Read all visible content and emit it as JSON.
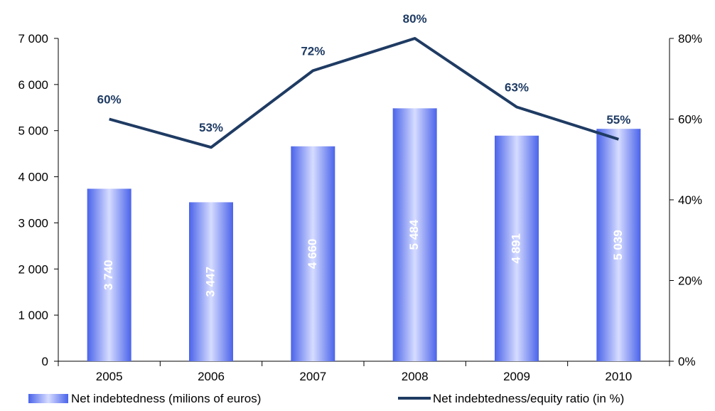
{
  "chart_data": {
    "type": "bar",
    "categories": [
      "2005",
      "2006",
      "2007",
      "2008",
      "2009",
      "2010"
    ],
    "series": [
      {
        "name": "Net indebtedness (milions of euros)",
        "type": "bar",
        "axis": "left",
        "values": [
          3740,
          3447,
          4660,
          5484,
          4891,
          5039
        ],
        "labels": [
          "3 740",
          "3 447",
          "4 660",
          "5 484",
          "4 891",
          "5 039"
        ]
      },
      {
        "name": "Net indebtedness/equity ratio (in %)",
        "type": "line",
        "axis": "right",
        "values": [
          60,
          53,
          72,
          80,
          63,
          55
        ],
        "labels": [
          "60%",
          "53%",
          "72%",
          "80%",
          "63%",
          "55%"
        ]
      }
    ],
    "left_axis": {
      "ylim": [
        0,
        7000
      ],
      "ticks": [
        0,
        1000,
        2000,
        3000,
        4000,
        5000,
        6000,
        7000
      ],
      "tick_labels": [
        "0",
        "1 000",
        "2 000",
        "3 000",
        "4 000",
        "5 000",
        "6 000",
        "7 000"
      ]
    },
    "right_axis": {
      "ylim": [
        0,
        80
      ],
      "ticks": [
        0,
        20,
        40,
        60,
        80
      ],
      "tick_labels": [
        "0%",
        "20%",
        "40%",
        "60%",
        "80%"
      ]
    },
    "title": "",
    "xlabel": "",
    "ylabel": "",
    "legend_position": "bottom",
    "grid": false,
    "colors": {
      "bar_edge": "#4a63ea",
      "bar_center": "#d6dcff",
      "line": "#1f3b63",
      "pct_label": "#1f3b63",
      "bar_label": "#ffffff"
    }
  }
}
